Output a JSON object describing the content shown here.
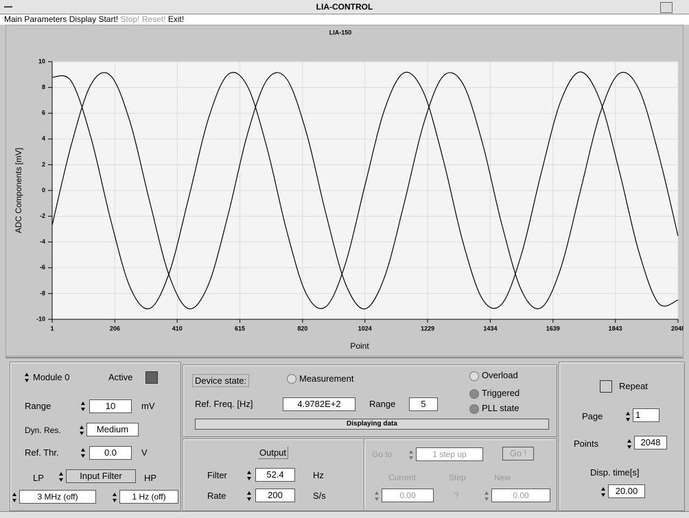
{
  "window": {
    "title": "LIA-CONTROL"
  },
  "menu": [
    "Main",
    "Parameters",
    "Display",
    "Start!",
    "Stop!",
    "Reset!",
    "Exit!"
  ],
  "chart_data": {
    "type": "line",
    "title": "LIA-150",
    "xlabel": "Point",
    "ylabel": "ADC Components [mV]",
    "x": [
      1,
      64,
      128,
      192,
      256,
      320,
      384,
      448,
      512,
      576,
      640,
      704,
      768,
      832,
      896,
      960,
      1024,
      1088,
      1152,
      1216,
      1280,
      1344,
      1408,
      1472,
      1536,
      1600,
      1664,
      1728,
      1792,
      1856,
      1920,
      1984,
      2048
    ],
    "series": [
      {
        "color": "#000000",
        "values": [
          8.8,
          8.47,
          4.1,
          -2.24,
          -7.52,
          -9.16,
          -6.39,
          -0.53,
          5.57,
          9.0,
          8.08,
          3.27,
          -3.12,
          -8.01,
          -9.03,
          -5.7,
          0.39,
          6.27,
          9.14,
          7.6,
          2.4,
          -3.96,
          -8.42,
          -8.81,
          -4.94,
          1.3,
          6.91,
          9.2,
          7.05,
          1.5,
          -4.77,
          -8.75,
          -8.5
        ]
      },
      {
        "color": "#000000",
        "values": [
          -2.7,
          3.58,
          8.23,
          8.92,
          5.3,
          -0.87,
          -6.62,
          -9.18,
          -7.31,
          -1.93,
          4.4,
          8.6,
          8.66,
          4.53,
          -1.77,
          -7.22,
          -9.19,
          -6.73,
          -1.03,
          5.18,
          8.88,
          8.3,
          3.71,
          -2.66,
          -7.76,
          -9.11,
          -6.07,
          -0.1,
          5.91,
          9.08,
          7.86,
          2.86,
          -3.52
        ]
      }
    ],
    "xlim": [
      1,
      2048
    ],
    "xticks": [
      1,
      206,
      410,
      615,
      820,
      1024,
      1229,
      1434,
      1639,
      1843,
      2048
    ],
    "ylim": [
      -10,
      10
    ],
    "yticks": [
      -10,
      -8,
      -6,
      -4,
      -2,
      0,
      2,
      4,
      6,
      8,
      10
    ],
    "grid": true
  },
  "module": {
    "module": "Module 0",
    "active": "Active",
    "range_label": "Range",
    "range_value": "10",
    "range_unit": "mV",
    "dynres_label": "Dyn. Res.",
    "dynres_value": "Medium",
    "refthr_label": "Ref. Thr.",
    "refthr_value": "0.0",
    "refthr_unit": "V",
    "lp": "LP",
    "input_filter": "Input Filter",
    "hp": "HP",
    "lp_value": "3 MHz (off)",
    "hp_value": "1 Hz (off)"
  },
  "device": {
    "state_label": "Device state:",
    "measurement": "Measurement",
    "overload": "Overload",
    "triggered": "Triggered",
    "pll": "PLL state",
    "ref_freq_label": "Ref. Freq. [Hz]",
    "ref_freq_value": "4.9782E+2",
    "range_label": "Range",
    "range_value": "5",
    "status": "Displaying data"
  },
  "output": {
    "title": "Output",
    "filter_label": "Filter",
    "filter_value": "52.4",
    "filter_unit": "Hz",
    "rate_label": "Rate",
    "rate_value": "200",
    "rate_unit": "S/s"
  },
  "goto": {
    "goto_label": "Go to",
    "goto_value": "1 step up",
    "go": "Go !",
    "current": "Current",
    "step": "Step",
    "new": "New",
    "current_value": "0.00",
    "step_value": "?",
    "new_value": "0.00"
  },
  "display": {
    "repeat": "Repeat",
    "page_label": "Page",
    "page_value": "1",
    "points_label": "Points",
    "points_value": "2048",
    "disp_label": "Disp. time[s]",
    "disp_value": "20.00"
  }
}
